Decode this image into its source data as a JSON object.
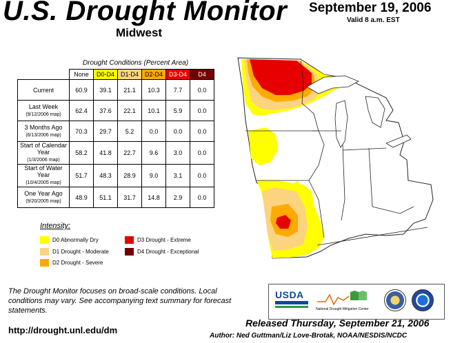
{
  "header": {
    "title": "U.S. Drought Monitor",
    "region": "Midwest",
    "date": "September 19, 2006",
    "valid": "Valid 8 a.m. EST"
  },
  "table": {
    "title": "Drought Conditions (Percent Area)",
    "columns": [
      "None",
      "D0-D4",
      "D1-D4",
      "D2-D4",
      "D3-D4",
      "D4"
    ],
    "rows": [
      {
        "label": "Current",
        "sub": "",
        "values": [
          "60.9",
          "39.1",
          "21.1",
          "10.3",
          "7.7",
          "0.0"
        ]
      },
      {
        "label": "Last Week",
        "sub": "(9/12/2006 map)",
        "values": [
          "62.4",
          "37.6",
          "22.1",
          "10.1",
          "5.9",
          "0.0"
        ]
      },
      {
        "label": "3 Months Ago",
        "sub": "(6/13/2006 map)",
        "values": [
          "70.3",
          "29.7",
          "5.2",
          "0.0",
          "0.0",
          "0.0"
        ]
      },
      {
        "label": "Start of Calendar Year",
        "sub": "(1/3/2006 map)",
        "values": [
          "58.2",
          "41.8",
          "22.7",
          "9.6",
          "3.0",
          "0.0"
        ]
      },
      {
        "label": "Start of Water Year",
        "sub": "(10/4/2005 map)",
        "values": [
          "51.7",
          "48.3",
          "28.9",
          "9.0",
          "3.1",
          "0.0"
        ]
      },
      {
        "label": "One Year Ago",
        "sub": "(9/20/2005 map)",
        "values": [
          "48.9",
          "51.1",
          "31.7",
          "14.8",
          "2.9",
          "0.0"
        ]
      }
    ]
  },
  "legend": {
    "title": "Intensity:",
    "items": [
      {
        "label": "D0 Abnormally Dry",
        "color": "#ffff00"
      },
      {
        "label": "D1 Drought - Moderate",
        "color": "#fcd37f"
      },
      {
        "label": "D2 Drought - Severe",
        "color": "#ffaa00"
      },
      {
        "label": "D3 Drought - Extreme",
        "color": "#e60000"
      },
      {
        "label": "D4 Drought - Exceptional",
        "color": "#730000"
      }
    ]
  },
  "footer": {
    "note": "The Drought Monitor focuses on broad-scale conditions. Local conditions may vary. See accompanying text summary for forecast statements.",
    "url": "http://drought.unl.edu/dm",
    "released": "Released Thursday, September 21, 2006",
    "author": "Author: Ned Guttman/Liz Love-Brotak, NOAA/NESDIS/NCDC"
  },
  "logos": {
    "usda": "USDA",
    "ndmc": "National Drought Mitigation Center"
  }
}
